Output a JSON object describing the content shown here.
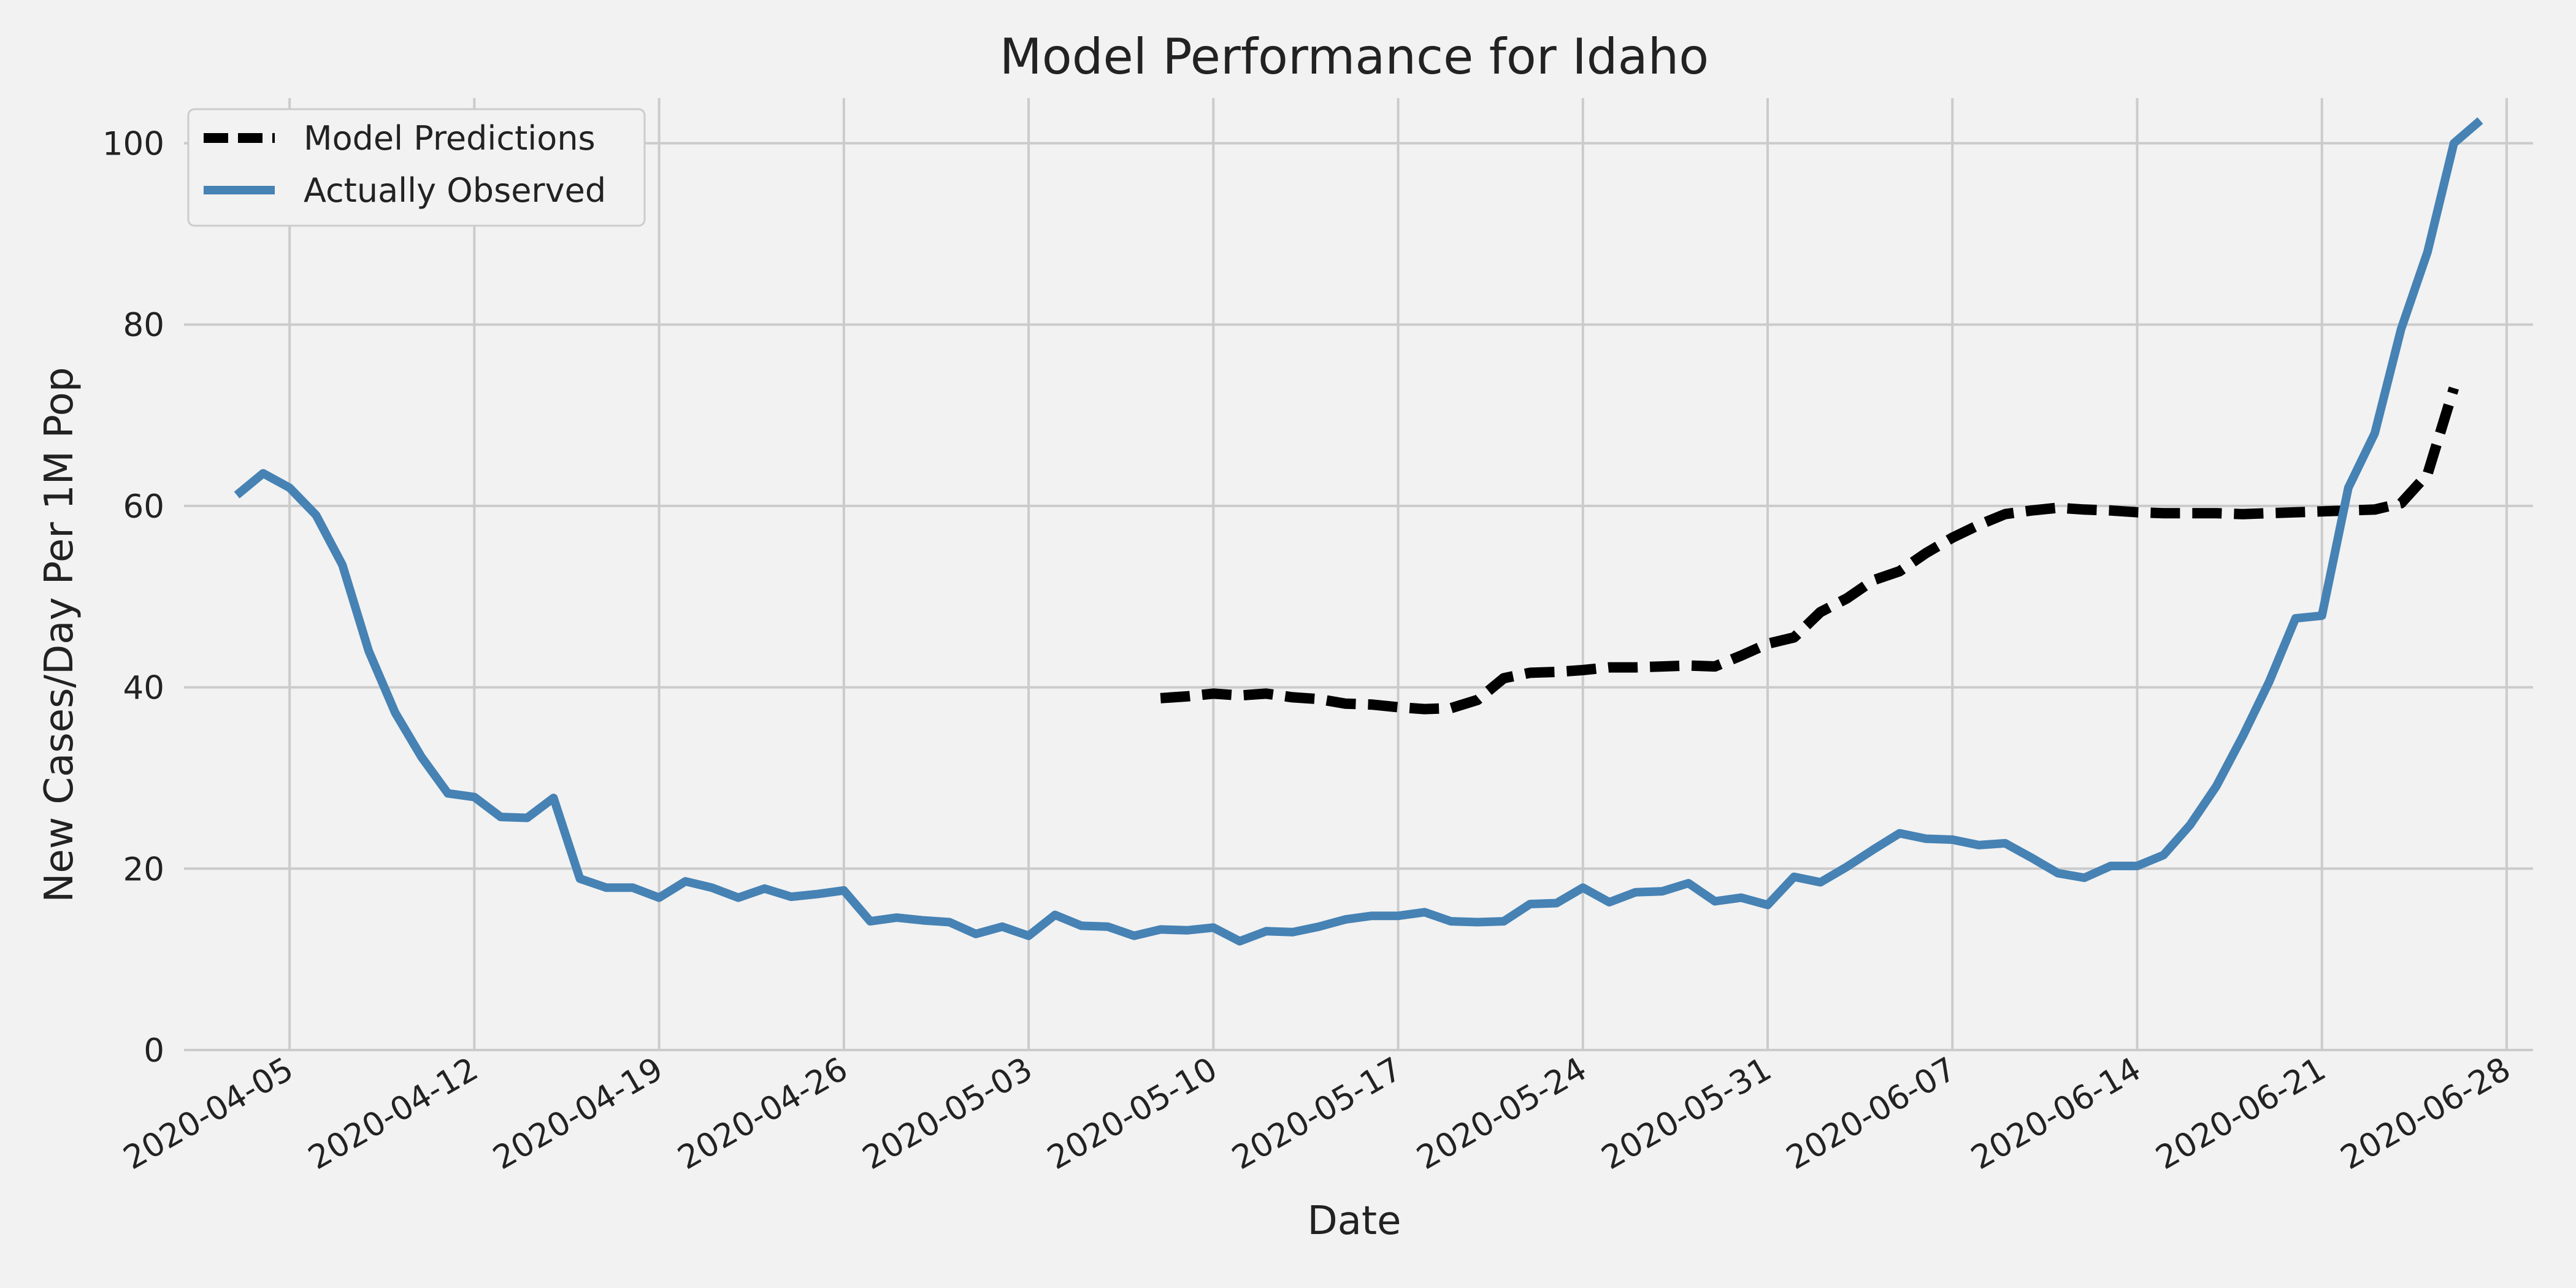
{
  "chart_data": {
    "type": "line",
    "title": "Model Performance for Idaho",
    "xlabel": "Date",
    "ylabel": "New Cases/Day Per 1M Pop",
    "xlim": [
      "2020-04-01",
      "2020-06-29"
    ],
    "ylim": [
      0,
      107
    ],
    "x_ticks": [
      "2020-04-05",
      "2020-04-12",
      "2020-04-19",
      "2020-04-26",
      "2020-05-03",
      "2020-05-10",
      "2020-05-17",
      "2020-05-24",
      "2020-05-31",
      "2020-06-07",
      "2020-06-14",
      "2020-06-21",
      "2020-06-28"
    ],
    "y_ticks": [
      0,
      20,
      40,
      60,
      80,
      100
    ],
    "grid": true,
    "legend_position": "top-left",
    "colors": {
      "background": "#f2f2f2",
      "grid": "#cbcbcb",
      "observed": "#4682b4",
      "predicted": "#000000"
    },
    "series": [
      {
        "name": "Model Predictions",
        "style": "dashed",
        "color": "#000000",
        "start_date": "2020-05-08",
        "values": [
          38.8,
          39.0,
          39.3,
          39.1,
          39.3,
          38.9,
          38.7,
          38.2,
          38.1,
          37.8,
          37.6,
          37.7,
          38.6,
          41.0,
          41.6,
          41.7,
          41.9,
          42.2,
          42.2,
          42.3,
          42.4,
          42.3,
          43.5,
          44.8,
          45.5,
          48.3,
          49.8,
          51.8,
          52.8,
          54.8,
          56.5,
          57.9,
          59.1,
          59.5,
          59.8,
          59.6,
          59.5,
          59.3,
          59.2,
          59.2,
          59.2,
          59.1,
          59.2,
          59.3,
          59.4,
          59.5,
          59.6,
          60.3,
          63.5,
          73.0
        ]
      },
      {
        "name": "Actually Observed",
        "style": "solid",
        "color": "#4682b4",
        "start_date": "2020-04-03",
        "values": [
          61.2,
          63.6,
          62.0,
          59.0,
          53.5,
          44.0,
          37.2,
          32.3,
          28.3,
          27.9,
          25.7,
          25.6,
          27.8,
          18.9,
          17.9,
          17.9,
          16.8,
          18.6,
          17.9,
          16.8,
          17.8,
          16.9,
          17.2,
          17.6,
          14.2,
          14.6,
          14.3,
          14.1,
          12.8,
          13.6,
          12.6,
          14.9,
          13.7,
          13.6,
          12.6,
          13.3,
          13.2,
          13.5,
          12.0,
          13.1,
          13.0,
          13.6,
          14.4,
          14.8,
          14.8,
          15.2,
          14.2,
          14.1,
          14.2,
          16.1,
          16.2,
          17.9,
          16.3,
          17.4,
          17.5,
          18.4,
          16.4,
          16.8,
          16.0,
          19.1,
          18.5,
          20.2,
          22.1,
          23.9,
          23.3,
          23.2,
          22.6,
          22.8,
          21.2,
          19.5,
          19.0,
          20.3,
          20.3,
          21.5,
          24.8,
          29.1,
          34.6,
          40.6,
          47.6,
          47.9,
          62.0,
          68.0,
          79.5,
          88.0,
          100.0,
          102.5
        ]
      }
    ]
  }
}
